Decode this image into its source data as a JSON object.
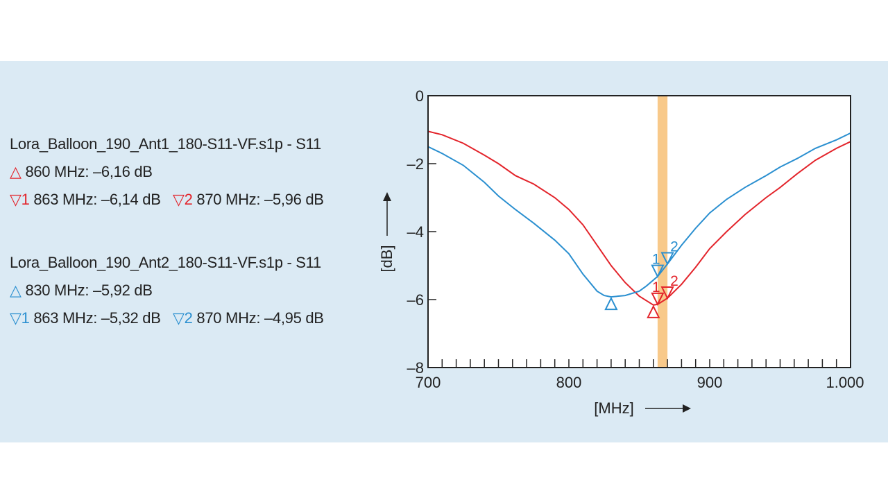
{
  "legend": {
    "ant1": {
      "title": "Lora_Balloon_190_Ant1_180-S11-VF.s1p - S11",
      "min_marker": "△",
      "min_text": "860 MHz: –6,16 dB",
      "m1_symbol": "▽1",
      "m1_text": "863 MHz: –6,14 dB",
      "m2_symbol": "▽2",
      "m2_text": "870 MHz: –5,96 dB"
    },
    "ant2": {
      "title": "Lora_Balloon_190_Ant2_180-S11-VF.s1p - S11",
      "min_marker": "△",
      "min_text": "830 MHz: –5,92 dB",
      "m1_symbol": "▽1",
      "m1_text": "863 MHz: –5,32 dB",
      "m2_symbol": "▽2",
      "m2_text": "870 MHz: –4,95 dB"
    }
  },
  "chart_data": {
    "type": "line",
    "xlabel": "[MHz]",
    "ylabel": "[dB]",
    "xlim": [
      700,
      1000
    ],
    "ylim": [
      -8,
      0
    ],
    "xticks": [
      700,
      800,
      900,
      1000
    ],
    "xtick_labels": [
      "700",
      "800",
      "900",
      "1.000"
    ],
    "yticks": [
      0,
      -2,
      -4,
      -6,
      -8
    ],
    "ytick_labels": [
      "0",
      "–2",
      "–4",
      "–6",
      "–8"
    ],
    "minor_x_step": 10,
    "highlight_band": [
      863,
      870
    ],
    "colors": {
      "ant1": "#e3242b",
      "ant2": "#2a8fd0",
      "band": "#f8c98a"
    },
    "series": [
      {
        "name": "Ant1",
        "color": "#e3242b",
        "x": [
          700,
          710,
          725,
          740,
          750,
          762,
          775,
          790,
          800,
          810,
          820,
          830,
          840,
          850,
          860,
          863,
          870,
          880,
          890,
          900,
          912,
          925,
          940,
          950,
          962,
          975,
          990,
          1000
        ],
        "y": [
          -1.05,
          -1.15,
          -1.4,
          -1.75,
          -2.0,
          -2.35,
          -2.6,
          -3.0,
          -3.35,
          -3.8,
          -4.4,
          -5.0,
          -5.5,
          -5.9,
          -6.16,
          -6.14,
          -5.96,
          -5.55,
          -5.05,
          -4.5,
          -4.0,
          -3.5,
          -3.0,
          -2.7,
          -2.3,
          -1.9,
          -1.55,
          -1.35
        ],
        "markers": [
          {
            "type": "min",
            "x": 860,
            "y": -6.16,
            "label": ""
          },
          {
            "type": "m",
            "x": 863,
            "y": -6.14,
            "label": "1"
          },
          {
            "type": "m",
            "x": 870,
            "y": -5.96,
            "label": "2"
          }
        ]
      },
      {
        "name": "Ant2",
        "color": "#2a8fd0",
        "x": [
          700,
          710,
          725,
          740,
          750,
          762,
          775,
          790,
          800,
          810,
          820,
          825,
          830,
          840,
          850,
          855,
          863,
          870,
          880,
          890,
          900,
          912,
          925,
          940,
          950,
          962,
          975,
          990,
          1000
        ],
        "y": [
          -1.5,
          -1.7,
          -2.05,
          -2.55,
          -2.95,
          -3.35,
          -3.75,
          -4.25,
          -4.65,
          -5.25,
          -5.75,
          -5.88,
          -5.92,
          -5.88,
          -5.75,
          -5.6,
          -5.32,
          -4.95,
          -4.4,
          -3.9,
          -3.45,
          -3.05,
          -2.7,
          -2.35,
          -2.1,
          -1.85,
          -1.55,
          -1.3,
          -1.1
        ],
        "markers": [
          {
            "type": "min",
            "x": 830,
            "y": -5.92,
            "label": ""
          },
          {
            "type": "m",
            "x": 863,
            "y": -5.32,
            "label": "1"
          },
          {
            "type": "m",
            "x": 870,
            "y": -4.95,
            "label": "2"
          }
        ]
      }
    ]
  }
}
